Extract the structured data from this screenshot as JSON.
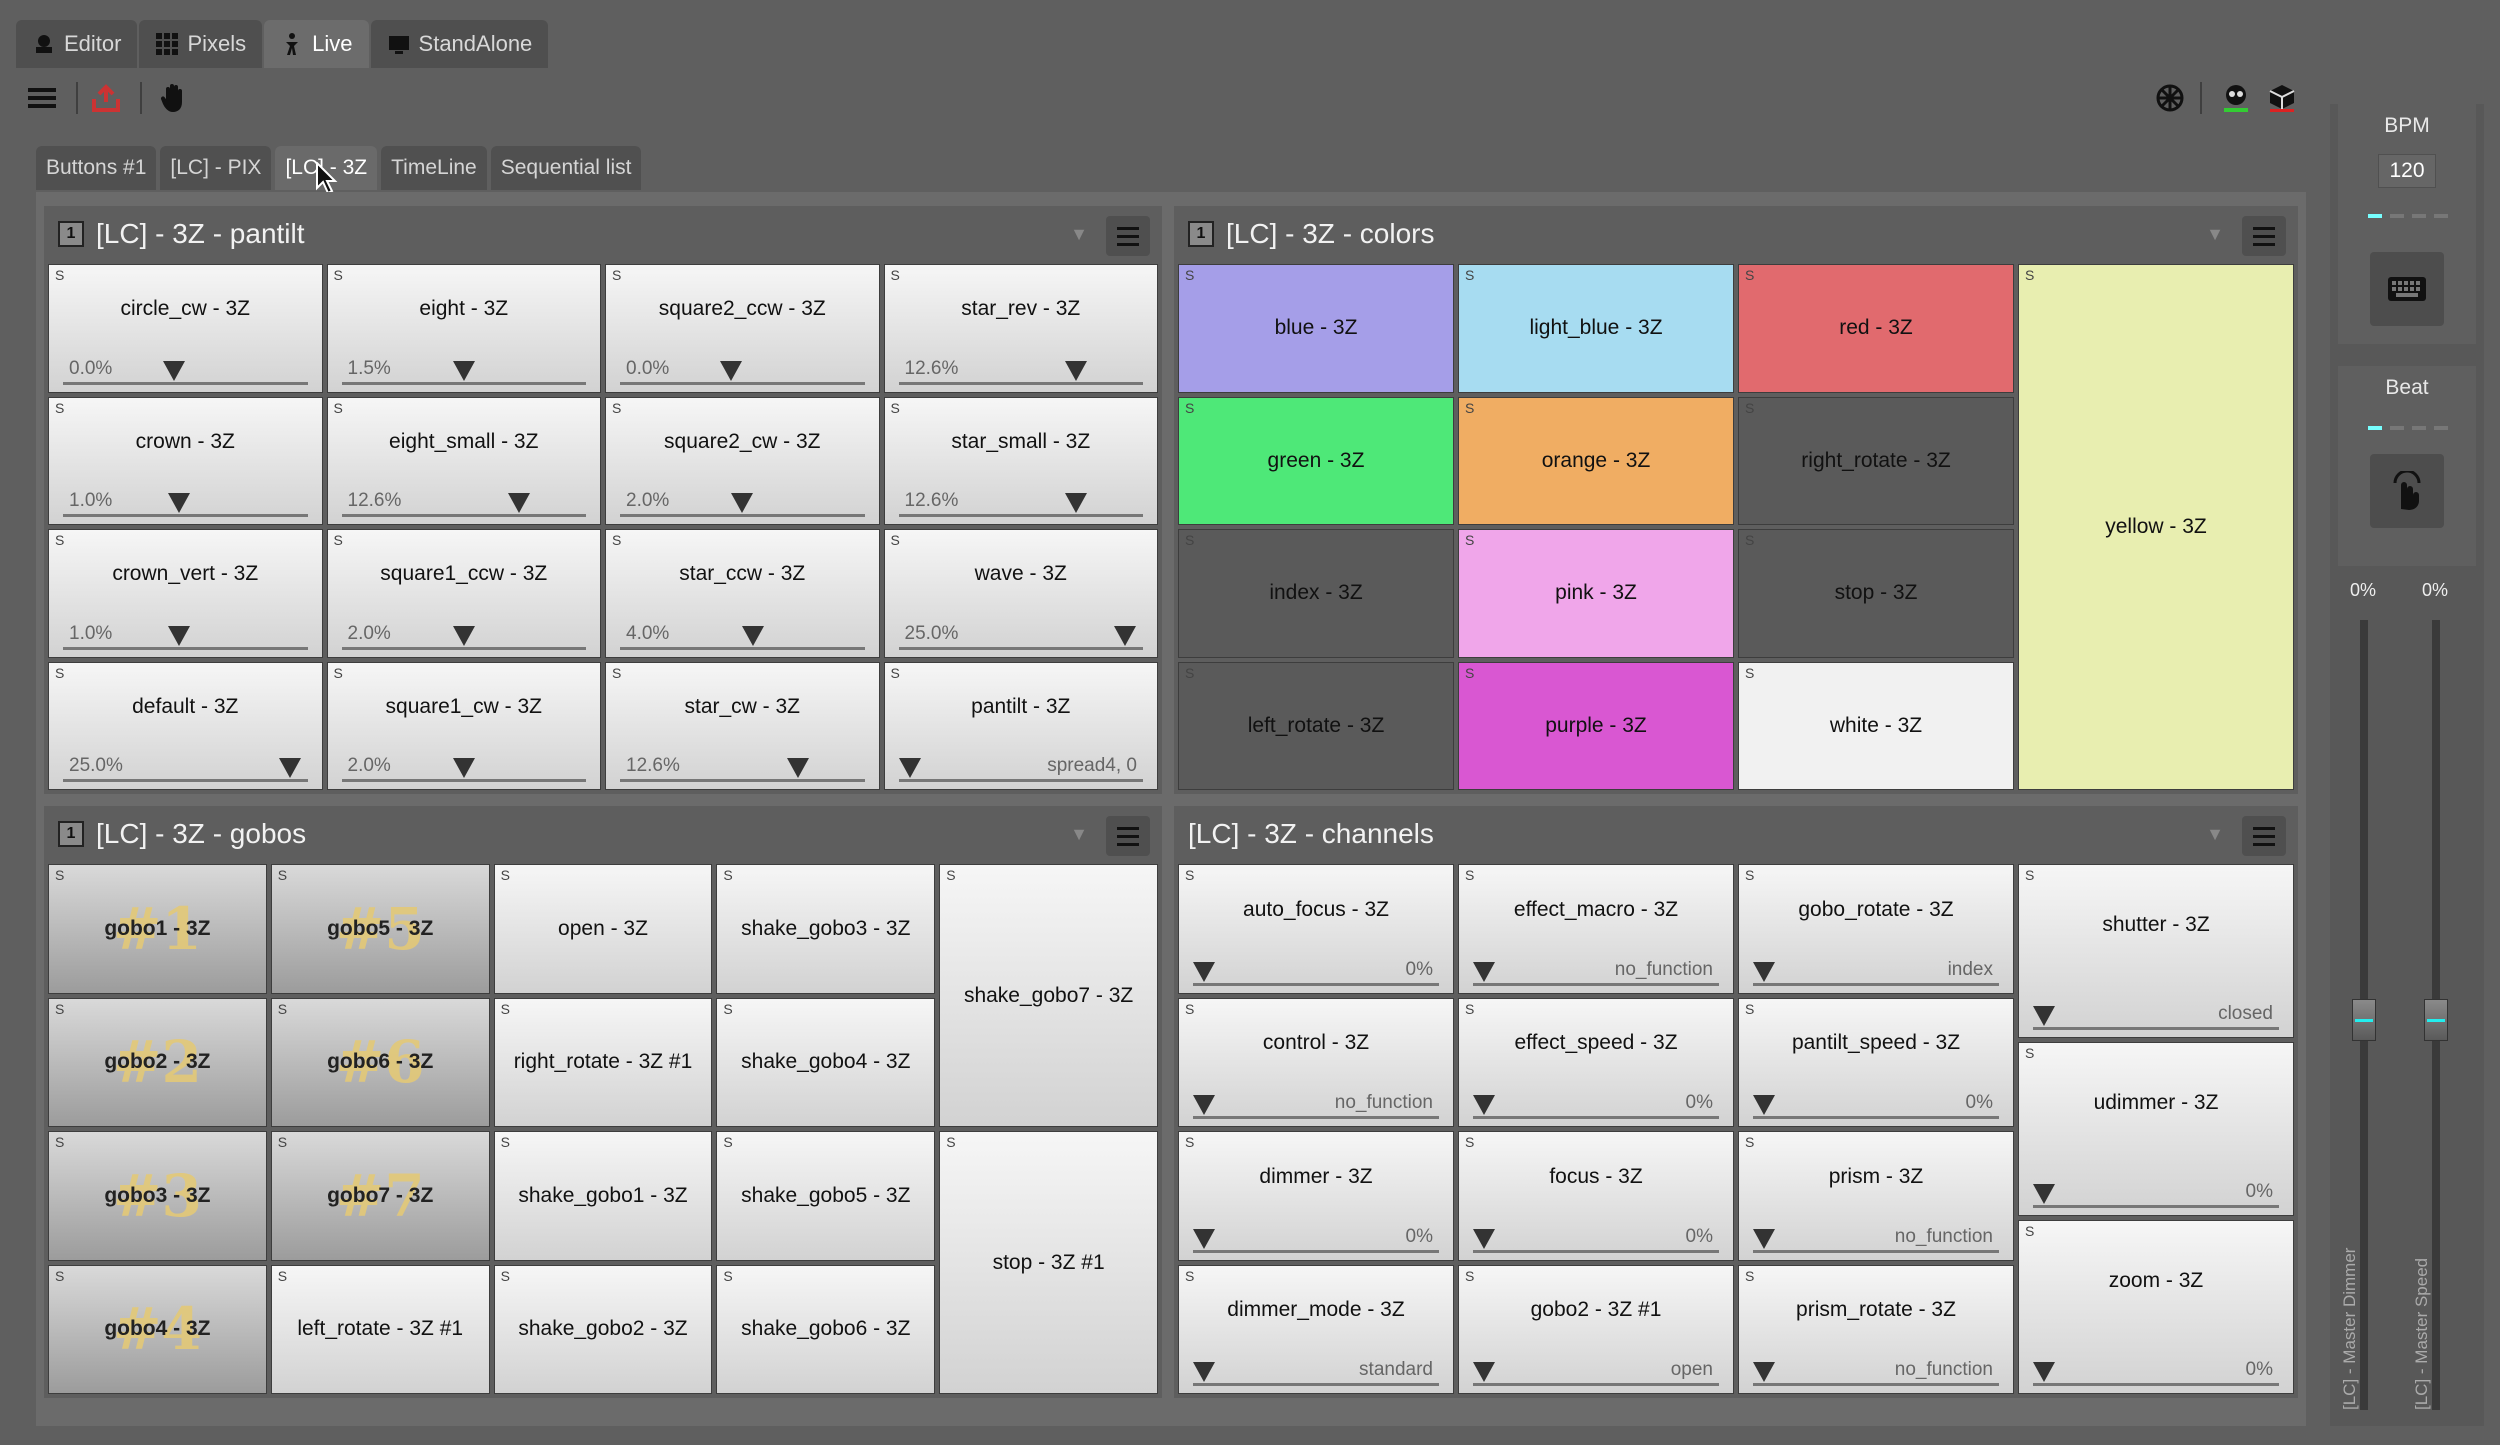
{
  "mode_tabs": [
    {
      "label": "Editor",
      "icon": "editor-icon"
    },
    {
      "label": "Pixels",
      "icon": "pixels-grid-icon"
    },
    {
      "label": "Live",
      "icon": "live-icon",
      "active": true
    },
    {
      "label": "StandAlone",
      "icon": "standalone-icon"
    }
  ],
  "sub_tabs": [
    {
      "label": "Buttons #1"
    },
    {
      "label": "[LC] - PIX"
    },
    {
      "label": "[LC] - 3Z",
      "active": true
    },
    {
      "label": "TimeLine"
    },
    {
      "label": "Sequential list"
    }
  ],
  "frames": {
    "pantilt": {
      "number": "1",
      "title": "[LC] - 3Z - pantilt",
      "buttons": [
        {
          "label": "circle_cw - 3Z",
          "value": "0.0%",
          "knob": 0.45
        },
        {
          "label": "eight - 3Z",
          "value": "1.5%",
          "knob": 0.5
        },
        {
          "label": "square2_ccw - 3Z",
          "value": "0.0%",
          "knob": 0.45
        },
        {
          "label": "star_rev - 3Z",
          "value": "12.6%",
          "knob": 0.75
        },
        {
          "label": "crown - 3Z",
          "value": "1.0%",
          "knob": 0.47
        },
        {
          "label": "eight_small - 3Z",
          "value": "12.6%",
          "knob": 0.75
        },
        {
          "label": "square2_cw - 3Z",
          "value": "2.0%",
          "knob": 0.5
        },
        {
          "label": "star_small - 3Z",
          "value": "12.6%",
          "knob": 0.75
        },
        {
          "label": "crown_vert - 3Z",
          "value": "1.0%",
          "knob": 0.47
        },
        {
          "label": "square1_ccw - 3Z",
          "value": "2.0%",
          "knob": 0.5
        },
        {
          "label": "star_ccw - 3Z",
          "value": "4.0%",
          "knob": 0.55
        },
        {
          "label": "wave - 3Z",
          "value": "25.0%",
          "knob": 0.97
        },
        {
          "label": "default - 3Z",
          "value": "25.0%",
          "knob": 0.97
        },
        {
          "label": "square1_cw - 3Z",
          "value": "2.0%",
          "knob": 0.5
        },
        {
          "label": "star_cw - 3Z",
          "value": "12.6%",
          "knob": 0.75
        },
        {
          "label": "pantilt - 3Z",
          "value": "spread4, 0",
          "knob": 0.0,
          "value_right": true
        }
      ]
    },
    "colors": {
      "number": "1",
      "title": "[LC] - 3Z - colors",
      "buttons": [
        {
          "label": "blue - 3Z",
          "color": "#a59ee8"
        },
        {
          "label": "light_blue - 3Z",
          "color": "#a7dcf1"
        },
        {
          "label": "red - 3Z",
          "color": "#e16a6e"
        },
        {
          "label": "green - 3Z",
          "color": "#4ee878"
        },
        {
          "label": "orange - 3Z",
          "color": "#f0ad63"
        },
        {
          "label": "right_rotate - 3Z",
          "color": "#5a5a5a"
        },
        {
          "label": "index - 3Z",
          "color": "#5a5a5a"
        },
        {
          "label": "pink - 3Z",
          "color": "#f0a6ea"
        },
        {
          "label": "stop - 3Z",
          "color": "#5a5a5a"
        },
        {
          "label": "left_rotate - 3Z",
          "color": "#5a5a5a"
        },
        {
          "label": "purple - 3Z",
          "color": "#d957d2"
        },
        {
          "label": "white - 3Z",
          "color": "#f1f1f1"
        },
        {
          "label": "yellow - 3Z",
          "color": "#e8eeb0"
        }
      ]
    },
    "gobos": {
      "number": "1",
      "title": "[LC] - 3Z - gobos",
      "buttons": [
        {
          "label": "gobo1 - 3Z",
          "big": "#1"
        },
        {
          "label": "gobo5 - 3Z",
          "big": "#5"
        },
        {
          "label": "open - 3Z"
        },
        {
          "label": "shake_gobo3 - 3Z"
        },
        {
          "label": "shake_gobo7 - 3Z"
        },
        {
          "label": "gobo2 - 3Z",
          "big": "#2"
        },
        {
          "label": "gobo6 - 3Z",
          "big": "#6"
        },
        {
          "label": "right_rotate - 3Z #1"
        },
        {
          "label": "shake_gobo4 - 3Z"
        },
        {
          "label": "gobo3 - 3Z",
          "big": "#3"
        },
        {
          "label": "gobo7 - 3Z",
          "big": "#7"
        },
        {
          "label": "shake_gobo1 - 3Z"
        },
        {
          "label": "shake_gobo5 - 3Z"
        },
        {
          "label": "stop - 3Z #1"
        },
        {
          "label": "gobo4 - 3Z",
          "big": "#4"
        },
        {
          "label": "left_rotate - 3Z #1"
        },
        {
          "label": "shake_gobo2 - 3Z"
        },
        {
          "label": "shake_gobo6 - 3Z"
        }
      ]
    },
    "channels": {
      "title": "[LC] - 3Z - channels",
      "buttons": [
        {
          "label": "auto_focus - 3Z",
          "value": "0%"
        },
        {
          "label": "effect_macro - 3Z",
          "value": "no_function"
        },
        {
          "label": "gobo_rotate - 3Z",
          "value": "index"
        },
        {
          "label": "shutter - 3Z",
          "value": "closed"
        },
        {
          "label": "control - 3Z",
          "value": "no_function"
        },
        {
          "label": "effect_speed - 3Z",
          "value": "0%"
        },
        {
          "label": "pantilt_speed - 3Z",
          "value": "0%"
        },
        {
          "label": "udimmer - 3Z",
          "value": "0%"
        },
        {
          "label": "dimmer - 3Z",
          "value": "0%"
        },
        {
          "label": "focus - 3Z",
          "value": "0%"
        },
        {
          "label": "prism - 3Z",
          "value": "no_function"
        },
        {
          "label": "zoom - 3Z",
          "value": "0%"
        },
        {
          "label": "dimmer_mode - 3Z",
          "value": "standard"
        },
        {
          "label": "gobo2 - 3Z #1",
          "value": "open"
        },
        {
          "label": "prism_rotate - 3Z",
          "value": "no_function"
        }
      ]
    }
  },
  "corner_mark": "S",
  "right_panel": {
    "bpm_label": "BPM",
    "bpm_value": "120",
    "beat_label": "Beat",
    "master_dimmer_pct": "0%",
    "master_speed_pct": "0%",
    "master_dimmer_label": "[LC] - Master Dimmer",
    "master_speed_label": "[LC] - Master Speed",
    "master_dimmer_level": 0.0,
    "master_speed_level": 0.0
  }
}
